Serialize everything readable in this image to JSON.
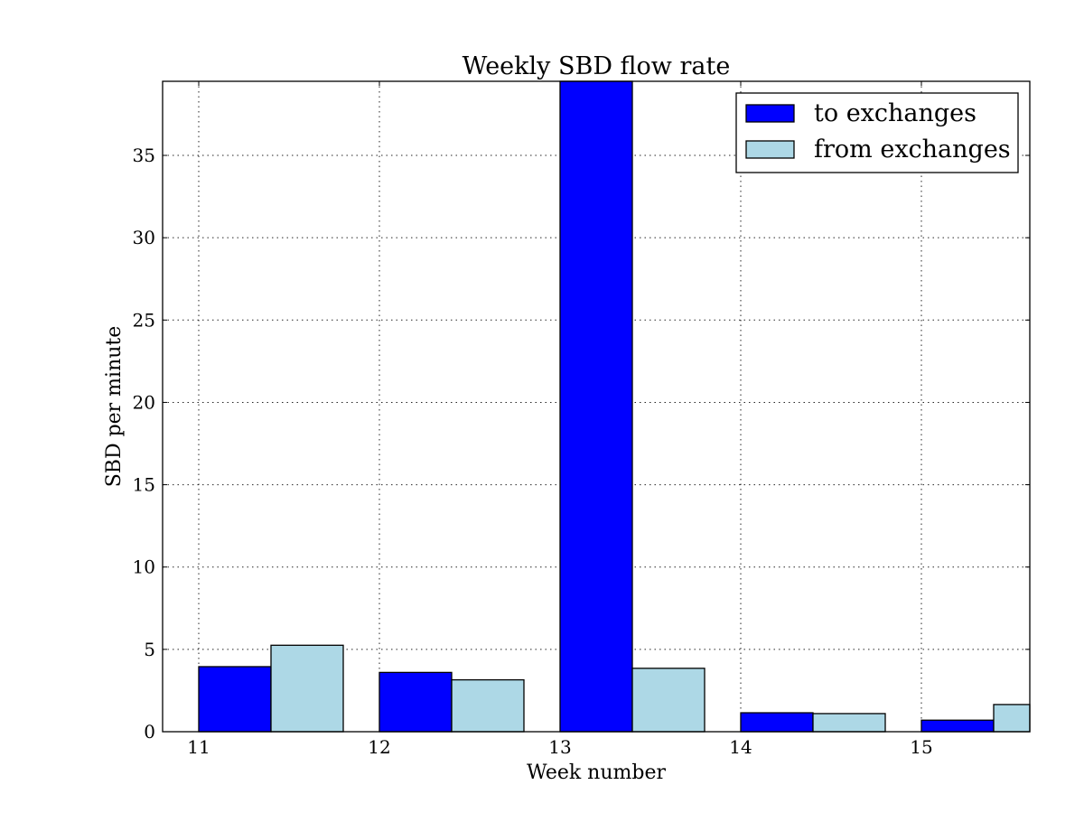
{
  "chart_data": {
    "type": "bar",
    "title": "Weekly SBD flow rate",
    "xlabel": "Week number",
    "ylabel": "SBD per minute",
    "categories": [
      "11",
      "12",
      "13",
      "14",
      "15"
    ],
    "series": [
      {
        "name": "to exchanges",
        "color": "#0000ff",
        "values": [
          3.95,
          3.6,
          41.5,
          1.15,
          0.7
        ]
      },
      {
        "name": "from exchanges",
        "color": "#add8e6",
        "values": [
          5.25,
          3.15,
          3.85,
          1.1,
          1.65
        ]
      }
    ],
    "xlim": [
      10.8,
      15.6
    ],
    "ylim": [
      0,
      39.5
    ],
    "yticks": [
      0,
      5,
      10,
      15,
      20,
      25,
      30,
      35
    ],
    "grid": true,
    "legend_position": "top-right"
  }
}
